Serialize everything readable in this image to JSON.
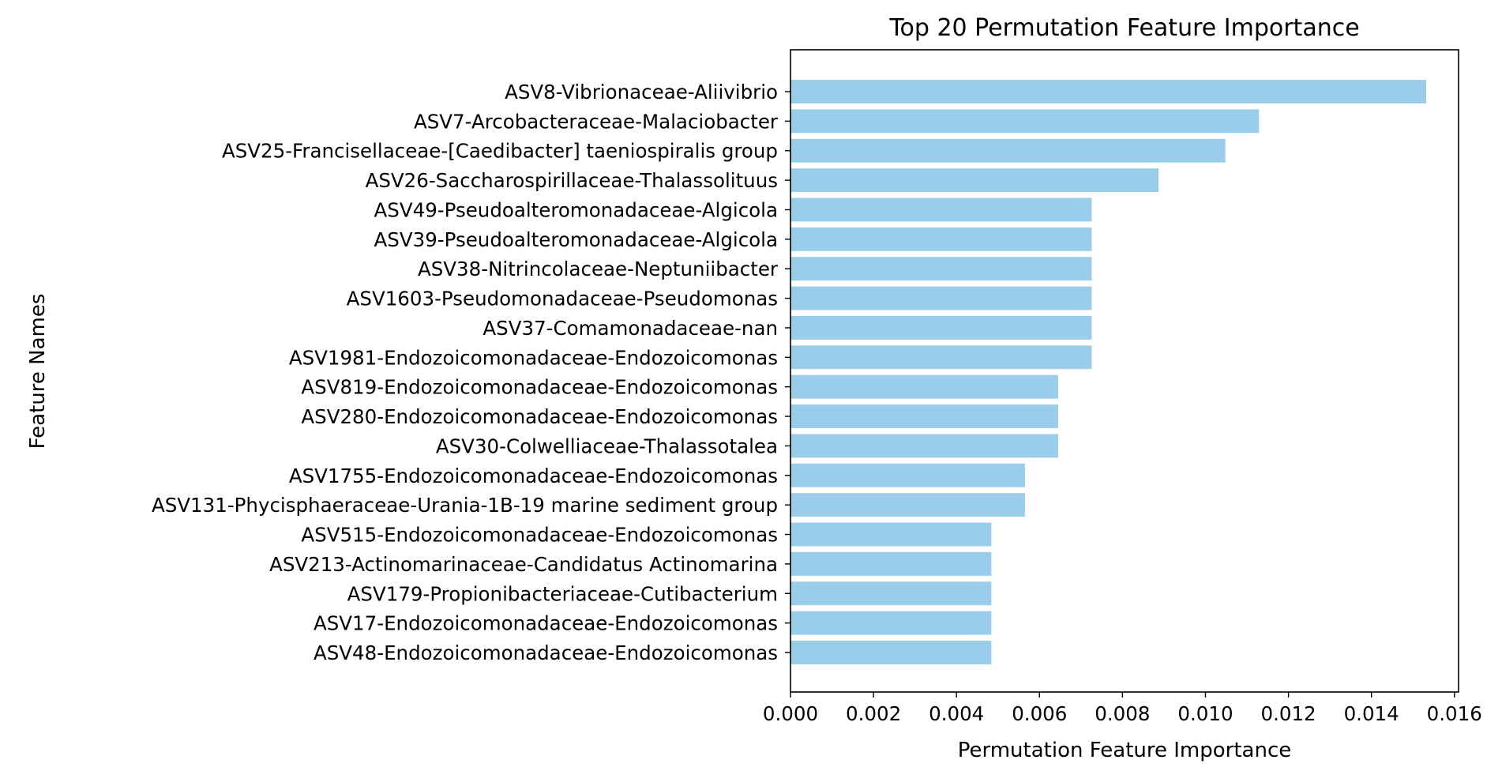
{
  "chart_data": {
    "type": "bar",
    "orientation": "horizontal",
    "title": "Top 20 Permutation Feature Importance",
    "xlabel": "Permutation Feature Importance",
    "ylabel": "Feature Names",
    "xlim": [
      0,
      0.0161
    ],
    "xticks": [
      "0.000",
      "0.002",
      "0.004",
      "0.006",
      "0.008",
      "0.010",
      "0.012",
      "0.014",
      "0.016"
    ],
    "grid": false,
    "bar_color": "#9acde9",
    "categories": [
      "ASV8-Vibrionaceae-Aliivibrio",
      "ASV7-Arcobacteraceae-Malaciobacter",
      "ASV25-Francisellaceae-[Caedibacter] taeniospiralis group",
      "ASV26-Saccharospirillaceae-Thalassolituus",
      "ASV49-Pseudoalteromonadaceae-Algicola",
      "ASV39-Pseudoalteromonadaceae-Algicola",
      "ASV38-Nitrincolaceae-Neptuniibacter",
      "ASV1603-Pseudomonadaceae-Pseudomonas",
      "ASV37-Comamonadaceae-nan",
      "ASV1981-Endozoicomonadaceae-Endozoicomonas",
      "ASV819-Endozoicomonadaceae-Endozoicomonas",
      "ASV280-Endozoicomonadaceae-Endozoicomonas",
      "ASV30-Colwelliaceae-Thalassotalea",
      "ASV1755-Endozoicomonadaceae-Endozoicomonas",
      "ASV131-Phycisphaeraceae-Urania-1B-19 marine sediment group",
      "ASV515-Endozoicomonadaceae-Endozoicomonas",
      "ASV213-Actinomarinaceae-Candidatus Actinomarina",
      "ASV179-Propionibacteriaceae-Cutibacterium",
      "ASV17-Endozoicomonadaceae-Endozoicomonas",
      "ASV48-Endozoicomonadaceae-Endozoicomonas"
    ],
    "values": [
      0.01532,
      0.01129,
      0.01048,
      0.00887,
      0.00726,
      0.00726,
      0.00726,
      0.00726,
      0.00726,
      0.00726,
      0.00645,
      0.00645,
      0.00645,
      0.00565,
      0.00565,
      0.00484,
      0.00484,
      0.00484,
      0.00484,
      0.00484
    ]
  }
}
